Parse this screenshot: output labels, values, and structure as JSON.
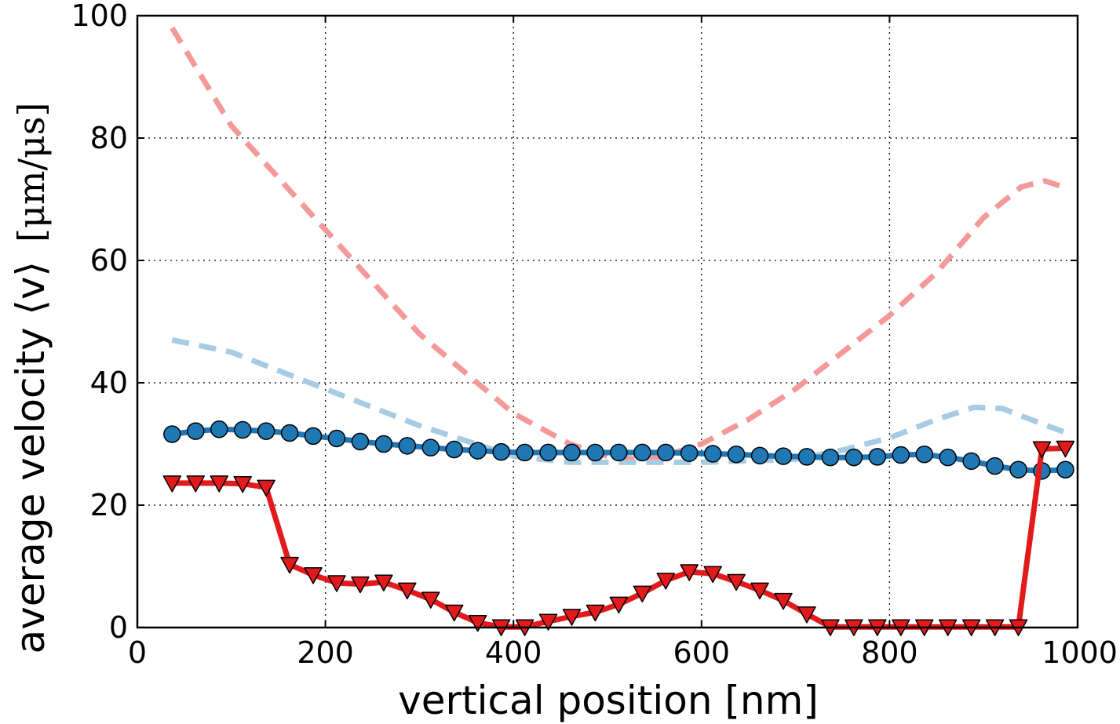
{
  "chart_data": {
    "type": "line",
    "title": "",
    "xlabel": "vertical position [nm]",
    "ylabel": "average velocity ⟨v⟩",
    "ylabel_unit": "[μm/μs]",
    "xlim": [
      0,
      1000
    ],
    "ylim": [
      0,
      100
    ],
    "xticks": [
      0,
      200,
      400,
      600,
      800,
      1000
    ],
    "yticks": [
      0,
      20,
      40,
      60,
      80,
      100
    ],
    "grid": true,
    "series": [
      {
        "name": "red-dashed",
        "style": "dashed",
        "color": "#f4999a",
        "x": [
          37,
          100,
          200,
          300,
          400,
          460,
          500,
          530,
          560,
          600,
          650,
          700,
          750,
          800,
          850,
          900,
          940,
          965,
          985
        ],
        "y": [
          98,
          82,
          65,
          48,
          35,
          30,
          28,
          27.5,
          28,
          30,
          34,
          39,
          45,
          51,
          58,
          67,
          72,
          73,
          72
        ]
      },
      {
        "name": "blue-dashed",
        "style": "dashed",
        "color": "#a6cbe3",
        "x": [
          37,
          100,
          200,
          300,
          400,
          460,
          500,
          600,
          700,
          750,
          800,
          850,
          890,
          920,
          950,
          985
        ],
        "y": [
          47,
          45,
          39,
          33,
          28,
          27,
          27,
          27,
          27.5,
          29,
          31,
          34,
          36,
          35.8,
          34,
          32
        ]
      },
      {
        "name": "blue-circles",
        "style": "solid-markers-circle",
        "color": "#1f78b4",
        "x": [
          37,
          62,
          87,
          112,
          137,
          162,
          187,
          212,
          237,
          262,
          287,
          312,
          337,
          362,
          387,
          412,
          437,
          462,
          487,
          512,
          537,
          562,
          587,
          612,
          637,
          662,
          687,
          712,
          737,
          762,
          787,
          812,
          837,
          862,
          887,
          912,
          937,
          962,
          987
        ],
        "y": [
          31.6,
          32.1,
          32.4,
          32.3,
          32.1,
          31.8,
          31.3,
          30.9,
          30.4,
          30,
          29.7,
          29.4,
          29.1,
          28.9,
          28.7,
          28.6,
          28.6,
          28.6,
          28.6,
          28.6,
          28.6,
          28.6,
          28.5,
          28.4,
          28.3,
          28.1,
          28,
          27.9,
          27.8,
          27.8,
          27.9,
          28.2,
          28.3,
          27.8,
          27.2,
          26.4,
          25.8,
          25.6,
          25.8
        ]
      },
      {
        "name": "red-triangles",
        "style": "solid-markers-triangle",
        "color": "#e31a1c",
        "x": [
          37,
          62,
          87,
          112,
          137,
          162,
          187,
          212,
          237,
          262,
          287,
          312,
          337,
          362,
          387,
          412,
          437,
          462,
          487,
          512,
          537,
          562,
          587,
          612,
          637,
          662,
          687,
          712,
          737,
          762,
          787,
          812,
          837,
          862,
          887,
          912,
          937,
          962,
          987
        ],
        "y": [
          23.6,
          23.6,
          23.6,
          23.5,
          22.9,
          10.3,
          8.6,
          7.3,
          7.1,
          7.4,
          6.1,
          4.6,
          2.5,
          0.8,
          0.1,
          0.1,
          1,
          1.8,
          2.5,
          3.8,
          5.6,
          7.7,
          9.1,
          8.8,
          7.5,
          6.1,
          4.4,
          2.2,
          0.1,
          0.1,
          0.1,
          0.1,
          0.1,
          0.1,
          0.1,
          0.1,
          0.1,
          29.2,
          29.3
        ]
      }
    ]
  }
}
